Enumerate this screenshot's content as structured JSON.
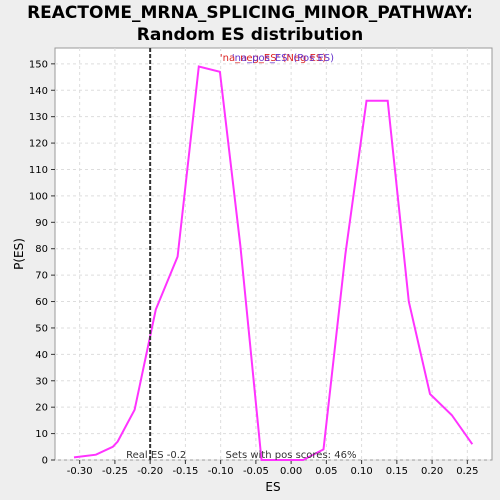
{
  "chart_data": {
    "type": "line",
    "title_line1": "REACTOME_MRNA_SPLICING_MINOR_PATHWAY:",
    "title_line2": "Random ES distribution",
    "xlabel": "ES",
    "ylabel": "P(ES)",
    "xlim": [
      -0.335,
      0.285
    ],
    "ylim": [
      0,
      156
    ],
    "xticks": [
      "-0.30",
      "-0.25",
      "-0.20",
      "-0.15",
      "-0.10",
      "-0.05",
      "0.00",
      "0.05",
      "0.10",
      "0.15",
      "0.20",
      "0.25"
    ],
    "xtick_values": [
      -0.3,
      -0.25,
      -0.2,
      -0.15,
      -0.1,
      -0.05,
      0.0,
      0.05,
      0.1,
      0.15,
      0.2,
      0.25
    ],
    "yticks": [
      0,
      10,
      20,
      30,
      40,
      50,
      60,
      70,
      80,
      90,
      100,
      110,
      120,
      130,
      140,
      150
    ],
    "grid": true,
    "series": [
      {
        "color": "#ff33ff",
        "x": [
          -0.308,
          -0.277,
          -0.253,
          -0.246,
          -0.222,
          -0.192,
          -0.161,
          -0.131,
          -0.101,
          -0.072,
          -0.042,
          -0.013,
          0.017,
          0.046,
          0.077,
          0.107,
          0.137,
          0.167,
          0.197,
          0.228,
          0.257
        ],
        "y": [
          1,
          2,
          5,
          7,
          19,
          57,
          77,
          149,
          147,
          81,
          0,
          0,
          0,
          4,
          78,
          136,
          136,
          60,
          25,
          17,
          6
        ]
      }
    ],
    "real_es": {
      "value": -0.2,
      "label": "Real ES -0.2",
      "color": "#333333"
    },
    "annotations": {
      "legend_na": "'na_neg_ES' (Neg ES)",
      "legend_na_color": "#dd2222",
      "legend_pos": "'na_pos_ES' (Pos ES)",
      "legend_pos_color": "#6633cc",
      "pos_scores": "Sets with pos scores: 46%"
    }
  }
}
